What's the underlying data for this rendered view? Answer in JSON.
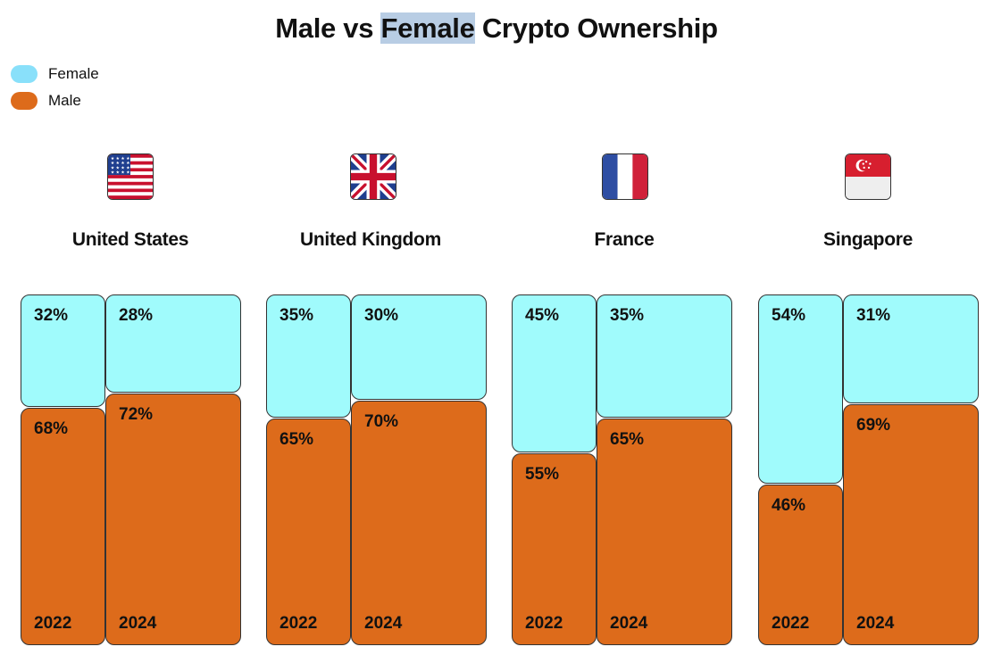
{
  "title_parts": [
    "Male vs ",
    "Female",
    " Crypto Ownership"
  ],
  "legend": [
    {
      "label": "Female",
      "color": "#89e0fa"
    },
    {
      "label": "Male",
      "color": "#dd6b1b"
    }
  ],
  "colors": {
    "female": "#a0fbfc",
    "male": "#dd6b1b",
    "outline": "#333333"
  },
  "chart_data": {
    "type": "bar",
    "subtype": "100% stacked columns grouped by country",
    "title": "Male vs Female Crypto Ownership",
    "series_names": [
      "Female",
      "Male"
    ],
    "groups": [
      {
        "country": "United States",
        "flag": "us-flag-icon",
        "years": [
          {
            "year": "2022",
            "female": 32,
            "male": 68,
            "female_label": "32%",
            "male_label": "68%"
          },
          {
            "year": "2024",
            "female": 28,
            "male": 72,
            "female_label": "28%",
            "male_label": "72%"
          }
        ]
      },
      {
        "country": "United Kingdom",
        "flag": "uk-flag-icon",
        "years": [
          {
            "year": "2022",
            "female": 35,
            "male": 65,
            "female_label": "35%",
            "male_label": "65%"
          },
          {
            "year": "2024",
            "female": 30,
            "male": 70,
            "female_label": "30%",
            "male_label": "70%"
          }
        ]
      },
      {
        "country": "France",
        "flag": "france-flag-icon",
        "years": [
          {
            "year": "2022",
            "female": 45,
            "male": 55,
            "female_label": "45%",
            "male_label": "55%"
          },
          {
            "year": "2024",
            "female": 35,
            "male": 65,
            "female_label": "35%",
            "male_label": "65%"
          }
        ]
      },
      {
        "country": "Singapore",
        "flag": "singapore-flag-icon",
        "years": [
          {
            "year": "2022",
            "female": 54,
            "male": 46,
            "female_label": "54%",
            "male_label": "46%"
          },
          {
            "year": "2024",
            "female": 31,
            "male": 69,
            "female_label": "31%",
            "male_label": "69%"
          }
        ]
      }
    ]
  }
}
